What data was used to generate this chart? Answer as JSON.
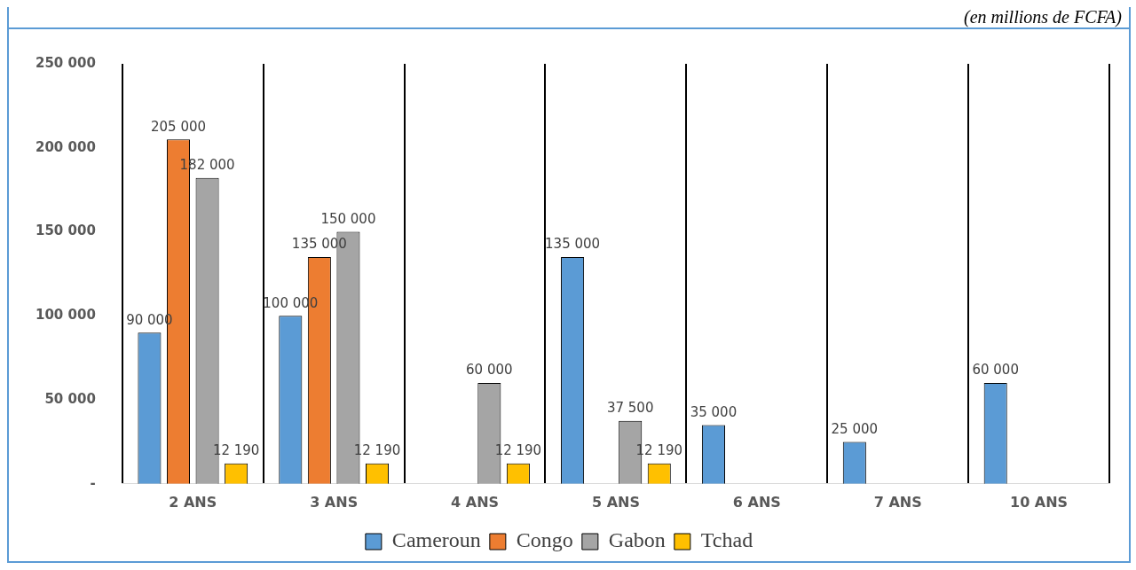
{
  "chart_data": {
    "type": "bar",
    "annotations": [
      "(en millions de FCFA)"
    ],
    "categories": [
      "2 ANS",
      "3 ANS",
      "4 ANS",
      "5 ANS",
      "6 ANS",
      "7 ANS",
      "10 ANS"
    ],
    "series": [
      {
        "name": "Cameroun",
        "color": "#5b9bd5",
        "values": [
          90000,
          100000,
          null,
          135000,
          35000,
          25000,
          60000
        ]
      },
      {
        "name": "Congo",
        "color": "#ed7d31",
        "values": [
          205000,
          135000,
          null,
          null,
          null,
          null,
          null
        ]
      },
      {
        "name": "Gabon",
        "color": "#a5a5a5",
        "values": [
          182000,
          150000,
          60000,
          37500,
          null,
          null,
          null
        ]
      },
      {
        "name": "Tchad",
        "color": "#ffc000",
        "values": [
          12190,
          12190,
          12190,
          12190,
          null,
          null,
          null
        ]
      }
    ],
    "ylim": [
      0,
      250000
    ],
    "yticks": [
      {
        "value": 0,
        "label": "-"
      },
      {
        "value": 50000,
        "label": "50 000"
      },
      {
        "value": 100000,
        "label": "100 000"
      },
      {
        "value": 150000,
        "label": "150 000"
      },
      {
        "value": 200000,
        "label": "200 000"
      },
      {
        "value": 250000,
        "label": "250 000"
      }
    ],
    "grid": "x",
    "legend": "bottom",
    "data_labels": true
  }
}
